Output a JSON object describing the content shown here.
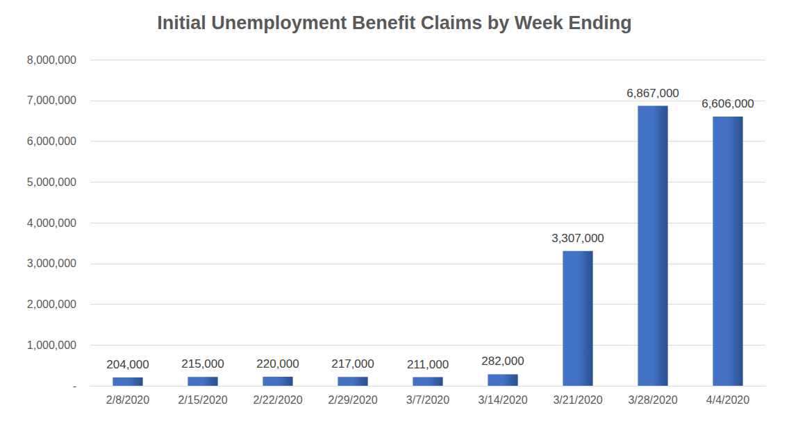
{
  "chart_data": {
    "type": "bar",
    "title": "Initial Unemployment Benefit Claims by Week Ending",
    "categories": [
      "2/8/2020",
      "2/15/2020",
      "2/22/2020",
      "2/29/2020",
      "3/7/2020",
      "3/14/2020",
      "3/21/2020",
      "3/28/2020",
      "4/4/2020"
    ],
    "values": [
      204000,
      215000,
      220000,
      217000,
      211000,
      282000,
      3307000,
      6867000,
      6606000
    ],
    "value_labels": [
      "204,000",
      "215,000",
      "220,000",
      "217,000",
      "211,000",
      "282,000",
      "3,307,000",
      "6,867,000",
      "6,606,000"
    ],
    "color": "#4472c4",
    "ylim": [
      0,
      8000000
    ],
    "yticks": [
      {
        "value": 0,
        "label": "-"
      },
      {
        "value": 1000000,
        "label": "1,000,000"
      },
      {
        "value": 2000000,
        "label": "2,000,000"
      },
      {
        "value": 3000000,
        "label": "3,000,000"
      },
      {
        "value": 4000000,
        "label": "4,000,000"
      },
      {
        "value": 5000000,
        "label": "5,000,000"
      },
      {
        "value": 6000000,
        "label": "6,000,000"
      },
      {
        "value": 7000000,
        "label": "7,000,000"
      },
      {
        "value": 8000000,
        "label": "8,000,000"
      }
    ],
    "grid": true,
    "data_labels": true
  }
}
